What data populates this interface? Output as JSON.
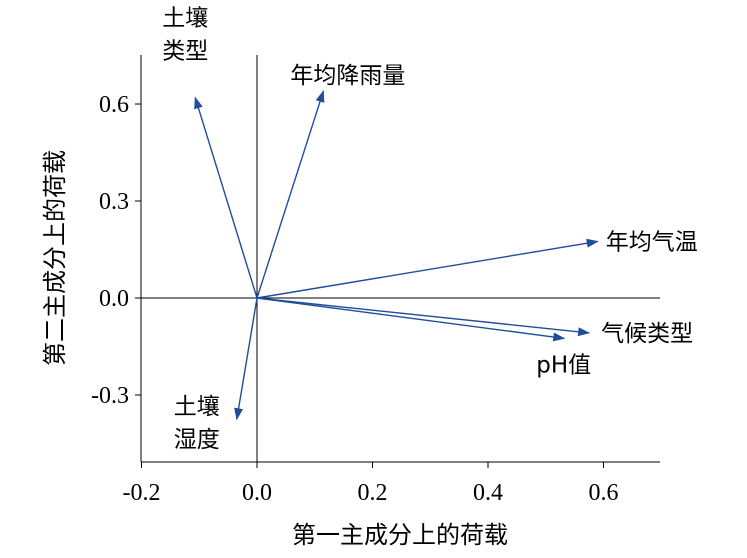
{
  "chart_data": {
    "type": "biplot-vectors",
    "xlabel": "第一主成分上的荷载",
    "ylabel": "第二主成分上的荷载",
    "xlim": [
      -0.2,
      0.7
    ],
    "ylim": [
      -0.5,
      0.75
    ],
    "x_ticks": [
      "-0.2",
      "0.0",
      "0.2",
      "0.4",
      "0.6"
    ],
    "y_ticks": [
      "0.6",
      "0.3",
      "0.0",
      "-0.3"
    ],
    "arrow_color": "#1f4e9a",
    "vectors": [
      {
        "name": "土壤类型",
        "label_lines": [
          "土壤",
          "类型"
        ],
        "x": -0.107,
        "y": 0.62
      },
      {
        "name": "年均降雨量",
        "label_lines": [
          "年均降雨量"
        ],
        "x": 0.115,
        "y": 0.64
      },
      {
        "name": "年均气温",
        "label_lines": [
          "年均气温"
        ],
        "x": 0.59,
        "y": 0.175
      },
      {
        "name": "气候类型",
        "label_lines": [
          "气候类型"
        ],
        "x": 0.575,
        "y": -0.108
      },
      {
        "name": "pH值",
        "label_lines": [
          "pH值"
        ],
        "x": 0.532,
        "y": -0.125
      },
      {
        "name": "土壤湿度",
        "label_lines": [
          "土壤",
          "湿度"
        ],
        "x": -0.035,
        "y": -0.375
      }
    ]
  }
}
